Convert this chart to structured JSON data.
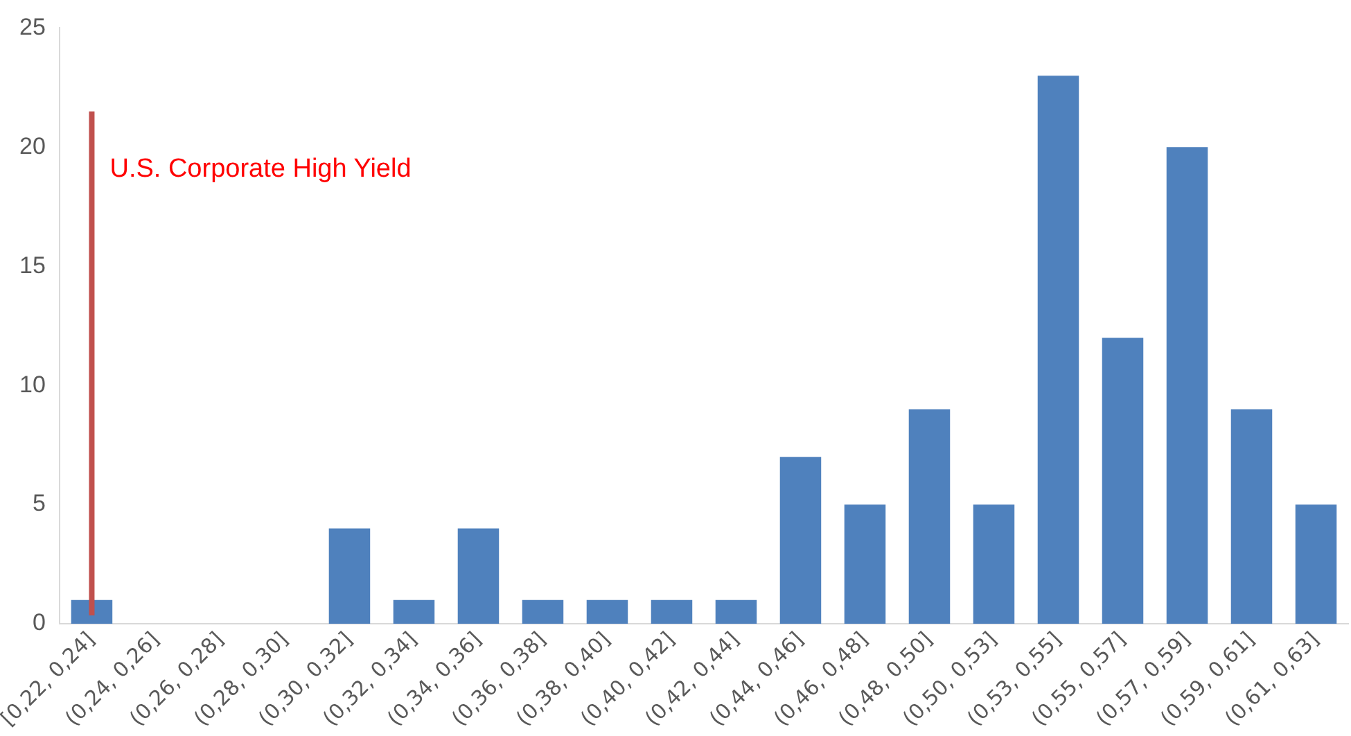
{
  "chart_data": {
    "type": "bar",
    "categories": [
      "[0,22, 0,24]",
      "(0,24, 0,26]",
      "(0,26, 0,28]",
      "(0,28, 0,30]",
      "(0,30, 0,32]",
      "(0,32, 0,34]",
      "(0,34, 0,36]",
      "(0,36, 0,38]",
      "(0,38, 0,40]",
      "(0,40, 0,42]",
      "(0,42, 0,44]",
      "(0,44, 0,46]",
      "(0,46, 0,48]",
      "(0,48, 0,50]",
      "(0,50, 0,53]",
      "(0,53, 0,55]",
      "(0,55, 0,57]",
      "(0,57, 0,59]",
      "(0,59, 0,61]",
      "(0,61, 0,63]"
    ],
    "values": [
      1,
      0,
      0,
      0,
      4,
      1,
      4,
      1,
      1,
      1,
      1,
      7,
      5,
      9,
      5,
      23,
      12,
      20,
      9,
      5
    ],
    "color": "#4f81bd",
    "ylim": [
      0,
      25
    ],
    "yticks": [
      0,
      5,
      10,
      15,
      20,
      25
    ],
    "grid": false,
    "legend": false,
    "ref_lines": [
      {
        "axis": "x",
        "value": "[0,22, 0,24]",
        "label": "U.S. Corporate High Yield",
        "color": "#c0504d"
      }
    ]
  }
}
